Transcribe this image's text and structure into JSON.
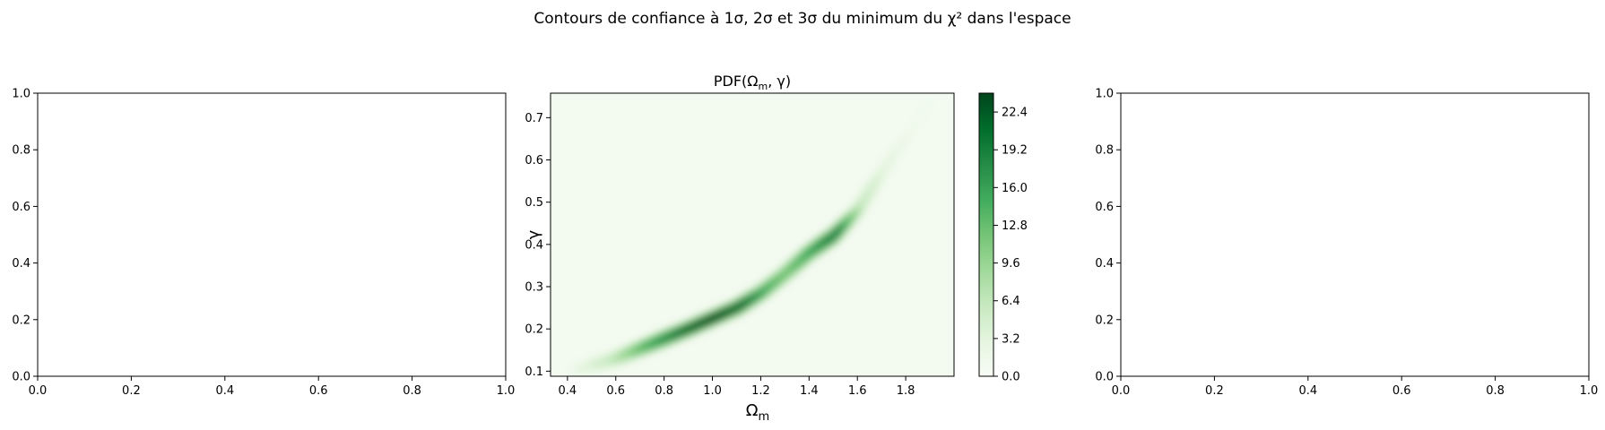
{
  "figure": {
    "suptitle": "Contours de confiance à 1σ, 2σ et 3σ du minimum du χ² dans l'espace"
  },
  "chart_data": [
    {
      "type": "line",
      "title": "",
      "xlabel": "",
      "ylabel": "",
      "xlim": [
        0.0,
        1.0
      ],
      "ylim": [
        0.0,
        1.0
      ],
      "xticks": [
        "0.0",
        "0.2",
        "0.4",
        "0.6",
        "0.8",
        "1.0"
      ],
      "yticks": [
        "0.0",
        "0.2",
        "0.4",
        "0.6",
        "0.8",
        "1.0"
      ],
      "series": []
    },
    {
      "type": "heatmap",
      "title": "PDF(Ωm, γ)",
      "title_parts": {
        "pre": "PDF(Ω",
        "sub": "m",
        "post": ", γ)"
      },
      "xlabel": "Ωm",
      "xlabel_parts": {
        "main": "Ω",
        "sub": "m"
      },
      "ylabel": "γ",
      "xlim": [
        0.33,
        2.0
      ],
      "ylim": [
        0.088,
        0.758
      ],
      "xticks": [
        0.4,
        0.6,
        0.8,
        1.0,
        1.2,
        1.4,
        1.6,
        1.8
      ],
      "xtick_labels": [
        "0.4",
        "0.6",
        "0.8",
        "1.0",
        "1.2",
        "1.4",
        "1.6",
        "1.8"
      ],
      "yticks": [
        0.1,
        0.2,
        0.3,
        0.4,
        0.5,
        0.6,
        0.7
      ],
      "ytick_labels": [
        "0.1",
        "0.2",
        "0.3",
        "0.4",
        "0.5",
        "0.6",
        "0.7"
      ],
      "colormap": "Greens",
      "colors": {
        "low": "#f7fcf5",
        "high": "#00441b"
      },
      "colorbar": {
        "range": [
          0.0,
          24.0
        ],
        "ticks": [
          0.0,
          3.2,
          6.4,
          9.6,
          12.8,
          16.0,
          19.2,
          22.4
        ],
        "tick_labels": [
          "0.0",
          "3.2",
          "6.4",
          "9.6",
          "12.8",
          "16.0",
          "19.2",
          "22.4"
        ]
      },
      "density_ridge": {
        "description_points": [
          {
            "omega_m": 0.45,
            "gamma": 0.105,
            "pdf": 2.0
          },
          {
            "omega_m": 0.6,
            "gamma": 0.13,
            "pdf": 6.0
          },
          {
            "omega_m": 0.75,
            "gamma": 0.165,
            "pdf": 14.0
          },
          {
            "omega_m": 0.9,
            "gamma": 0.2,
            "pdf": 20.0
          },
          {
            "omega_m": 1.0,
            "gamma": 0.225,
            "pdf": 22.0
          },
          {
            "omega_m": 1.1,
            "gamma": 0.25,
            "pdf": 20.0
          },
          {
            "omega_m": 1.2,
            "gamma": 0.285,
            "pdf": 14.0
          },
          {
            "omega_m": 1.3,
            "gamma": 0.33,
            "pdf": 11.0
          },
          {
            "omega_m": 1.4,
            "gamma": 0.38,
            "pdf": 14.0
          },
          {
            "omega_m": 1.5,
            "gamma": 0.42,
            "pdf": 18.0
          },
          {
            "omega_m": 1.6,
            "gamma": 0.48,
            "pdf": 6.0
          },
          {
            "omega_m": 1.7,
            "gamma": 0.57,
            "pdf": 3.0
          },
          {
            "omega_m": 1.8,
            "gamma": 0.65,
            "pdf": 1.5
          },
          {
            "omega_m": 1.9,
            "gamma": 0.74,
            "pdf": 1.0
          }
        ]
      }
    },
    {
      "type": "line",
      "title": "",
      "xlabel": "",
      "ylabel": "",
      "xlim": [
        0.0,
        1.0
      ],
      "ylim": [
        0.0,
        1.0
      ],
      "xticks": [
        "0.0",
        "0.2",
        "0.4",
        "0.6",
        "0.8",
        "1.0"
      ],
      "yticks": [
        "0.0",
        "0.2",
        "0.4",
        "0.6",
        "0.8",
        "1.0"
      ],
      "series": []
    }
  ]
}
